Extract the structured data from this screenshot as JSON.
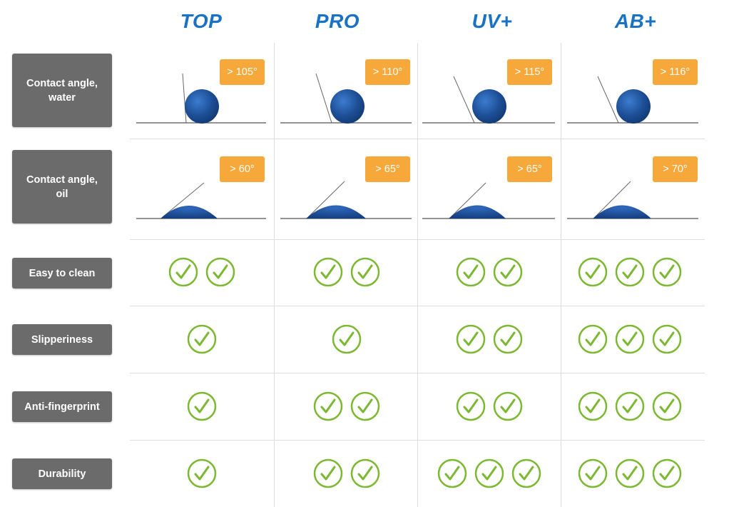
{
  "columns": [
    {
      "name": "TOP",
      "water_angle": "> 105°",
      "oil_angle": "> 60°"
    },
    {
      "name": "PRO",
      "water_angle": "> 110°",
      "oil_angle": "> 65°"
    },
    {
      "name": "UV+",
      "water_angle": "> 115°",
      "oil_angle": "> 65°"
    },
    {
      "name": "AB+",
      "water_angle": "> 116°",
      "oil_angle": "> 70°"
    }
  ],
  "rows": {
    "water": "Contact angle, water",
    "oil": "Contact angle, oil",
    "easy_to_clean": "Easy to clean",
    "slipperiness": "Slipperiness",
    "anti_fingerprint": "Anti-fingerprint",
    "durability": "Durability"
  },
  "ratings": {
    "easy_to_clean": [
      2,
      2,
      2,
      3
    ],
    "slipperiness": [
      1,
      1,
      2,
      3
    ],
    "anti_fingerprint": [
      1,
      2,
      2,
      3
    ],
    "durability": [
      1,
      2,
      3,
      3
    ]
  },
  "colors": {
    "header_blue": "#1a72c4",
    "badge_orange": "#f6a83a",
    "label_gray": "#6b6b6b",
    "check_green": "#7cb832",
    "drop_blue": "#1d4f97"
  },
  "icons": {
    "check": "check-circle-icon",
    "water_drop": "water-droplet-icon",
    "oil_drop": "oil-droplet-icon"
  }
}
